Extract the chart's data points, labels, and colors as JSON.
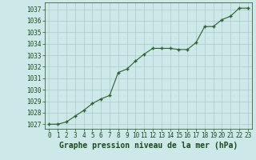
{
  "x": [
    0,
    1,
    2,
    3,
    4,
    5,
    6,
    7,
    8,
    9,
    10,
    11,
    12,
    13,
    14,
    15,
    16,
    17,
    18,
    19,
    20,
    21,
    22,
    23
  ],
  "y": [
    1027.0,
    1027.0,
    1027.2,
    1027.7,
    1028.2,
    1028.8,
    1029.2,
    1029.5,
    1031.5,
    1031.8,
    1032.5,
    1033.1,
    1033.6,
    1033.6,
    1033.6,
    1033.5,
    1033.5,
    1034.1,
    1035.5,
    1035.5,
    1036.1,
    1036.4,
    1037.1,
    1037.1
  ],
  "line_color": "#2d5e2d",
  "marker_color": "#2d5e2d",
  "bg_color": "#cce8e8",
  "grid_color": "#aacaca",
  "xlabel": "Graphe pression niveau de la mer (hPa)",
  "xlabel_fontsize": 7.0,
  "ylabel_ticks": [
    1027,
    1028,
    1029,
    1030,
    1031,
    1032,
    1033,
    1034,
    1035,
    1036,
    1037
  ],
  "xlim": [
    -0.5,
    23.5
  ],
  "ylim": [
    1026.6,
    1037.6
  ],
  "xticks": [
    0,
    1,
    2,
    3,
    4,
    5,
    6,
    7,
    8,
    9,
    10,
    11,
    12,
    13,
    14,
    15,
    16,
    17,
    18,
    19,
    20,
    21,
    22,
    23
  ],
  "tick_fontsize": 5.5,
  "label_color": "#1a4a1a"
}
